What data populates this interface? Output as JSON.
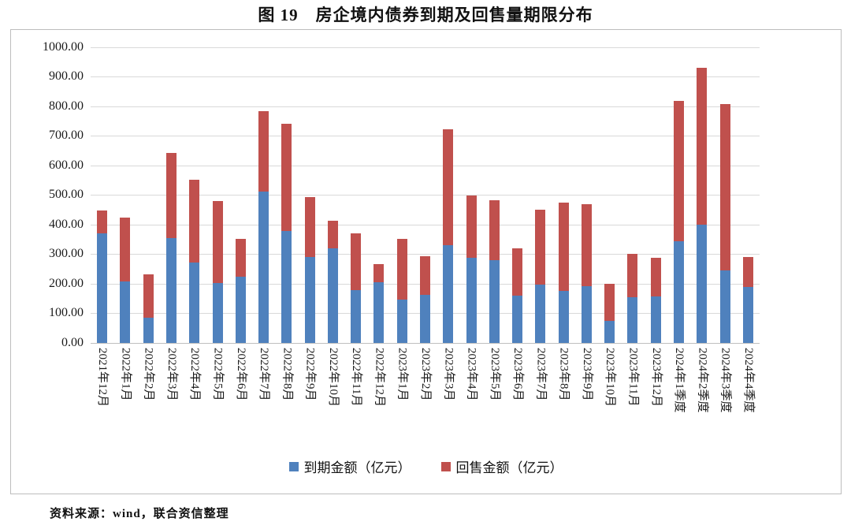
{
  "title": "图 19　房企境内债券到期及回售量期限分布",
  "source_note": "资料来源：wind，联合资信整理",
  "colors": {
    "maturity_blue": "#4f81bd",
    "putback_red": "#c0504d",
    "gridline": "#d9d9d9",
    "axis_line": "#bfbfbf"
  },
  "chart_data": {
    "type": "bar",
    "stacked": true,
    "title": "图 19　房企境内债券到期及回售量期限分布",
    "xlabel": "",
    "ylabel": "",
    "ylim": [
      0,
      1000
    ],
    "y_ticks_values": [
      0,
      100,
      200,
      300,
      400,
      500,
      600,
      700,
      800,
      900,
      1000
    ],
    "y_ticks_labels": [
      "0.00",
      "100.00",
      "200.00",
      "300.00",
      "400.00",
      "500.00",
      "600.00",
      "700.00",
      "800.00",
      "900.00",
      "1000.00"
    ],
    "grid": "horizontal",
    "legend_position": "bottom",
    "categories": [
      "2021年12月",
      "2022年1月",
      "2022年2月",
      "2022年3月",
      "2022年4月",
      "2022年5月",
      "2022年6月",
      "2022年7月",
      "2022年8月",
      "2022年9月",
      "2022年10月",
      "2022年11月",
      "2022年12月",
      "2023年1月",
      "2023年2月",
      "2023年3月",
      "2023年4月",
      "2023年5月",
      "2023年6月",
      "2023年7月",
      "2023年8月",
      "2023年9月",
      "2023年10月",
      "2023年11月",
      "2023年12月",
      "2024年1季度",
      "2024年2季度",
      "2024年3季度",
      "2024年4季度"
    ],
    "series": [
      {
        "name": "到期金额（亿元）",
        "color": "#4f81bd",
        "values": [
          370,
          207,
          85,
          355,
          272,
          203,
          223,
          511,
          378,
          290,
          319,
          178,
          205,
          147,
          162,
          331,
          288,
          280,
          159,
          197,
          176,
          192,
          75,
          155,
          156,
          343,
          399,
          245,
          190
        ]
      },
      {
        "name": "回售金额（亿元）",
        "color": "#c0504d",
        "values": [
          78,
          217,
          148,
          287,
          280,
          277,
          129,
          271,
          362,
          204,
          94,
          192,
          62,
          205,
          131,
          391,
          209,
          202,
          160,
          253,
          297,
          278,
          125,
          147,
          132,
          474,
          531,
          561,
          99
        ]
      }
    ],
    "totals": [
      448,
      424,
      233,
      642,
      552,
      480,
      352,
      782,
      740,
      494,
      413,
      370,
      267,
      352,
      293,
      722,
      497,
      482,
      319,
      450,
      473,
      470,
      200,
      302,
      288,
      817,
      930,
      806,
      289
    ]
  }
}
